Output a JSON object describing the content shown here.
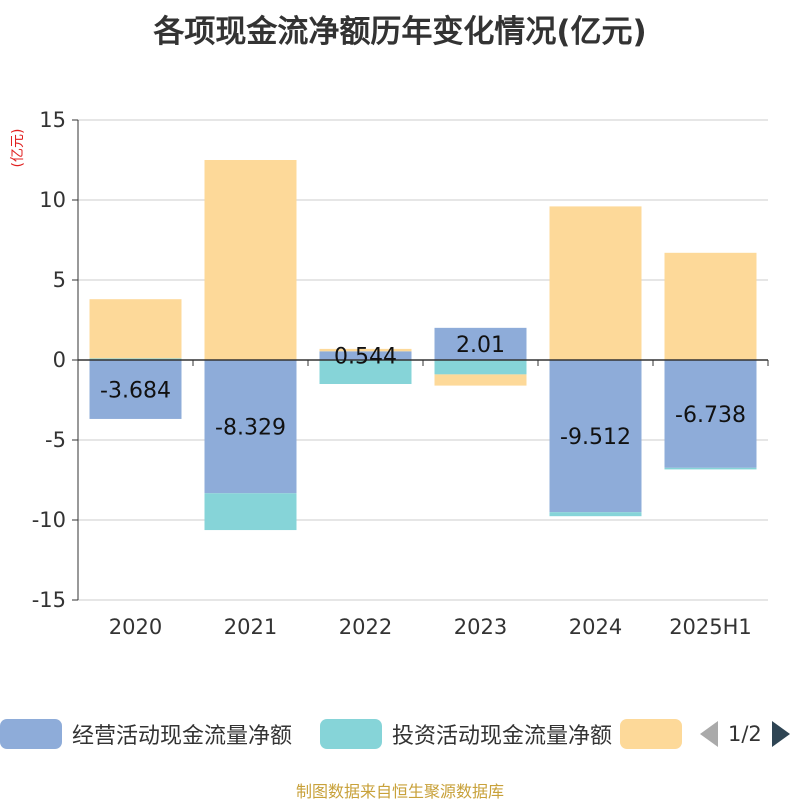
{
  "title": "各项现金流净额历年变化情况(亿元)",
  "footer": "制图数据来自恒生聚源数据库",
  "chart_data": {
    "type": "bar",
    "stacked": true,
    "unit_label": "(亿元)",
    "categories": [
      "2020",
      "2021",
      "2022",
      "2023",
      "2024",
      "2025H1"
    ],
    "ylim": [
      -15,
      15
    ],
    "yticks": [
      15,
      10,
      5,
      0,
      -5,
      -10,
      -15
    ],
    "grid": true,
    "series": [
      {
        "name": "经营活动现金流量净额",
        "color": "#8eacd9",
        "values": [
          -3.684,
          -8.329,
          0.544,
          2.01,
          -9.512,
          -6.738
        ],
        "labels": [
          "-3.684",
          "-8.329",
          "0.544",
          "2.01",
          "-9.512",
          "-6.738"
        ]
      },
      {
        "name": "投资活动现金流量净额",
        "color": "#86d4d8",
        "values": [
          0.1,
          -2.3,
          -1.5,
          -0.9,
          -0.25,
          -0.1
        ]
      },
      {
        "name": "",
        "color": "#fdd999",
        "values": [
          3.7,
          12.5,
          0.15,
          -0.7,
          9.6,
          6.7
        ]
      }
    ],
    "legend_position": "bottom",
    "legend_page": "1/2"
  }
}
